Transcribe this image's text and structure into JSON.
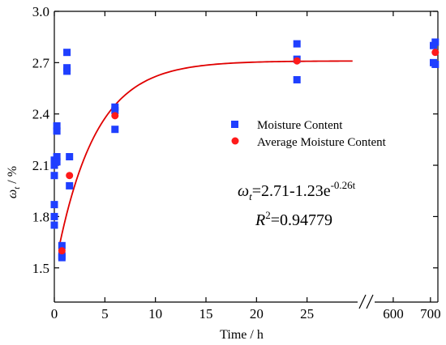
{
  "chart_data": {
    "type": "scatter",
    "xlabel": "Time / h",
    "ylabel_main": "ω",
    "ylabel_sub": "t",
    "ylabel_rest": " / %",
    "ylim": [
      1.3,
      3.0
    ],
    "y_ticks": [
      "1.5",
      "1.8",
      "2.1",
      "2.4",
      "2.7",
      "3.0"
    ],
    "x_axis": {
      "segment1_range": [
        0,
        30
      ],
      "segment1_ticks": [
        "0",
        "5",
        "10",
        "15",
        "20",
        "25"
      ],
      "segment2_range": [
        550,
        720
      ],
      "segment2_ticks": [
        "600",
        "700"
      ],
      "axis_break": true
    },
    "colors": {
      "moisture": "#1f3fff",
      "average": "#ff1a1a",
      "fit": "#e00000"
    },
    "series": [
      {
        "name": "Moisture  Content",
        "marker": "square",
        "points": [
          [
            0,
            1.75
          ],
          [
            0,
            1.8
          ],
          [
            0,
            1.87
          ],
          [
            0,
            2.04
          ],
          [
            0,
            2.1
          ],
          [
            0,
            2.13
          ],
          [
            0.25,
            2.15
          ],
          [
            0.25,
            2.3
          ],
          [
            0.25,
            2.33
          ],
          [
            0.25,
            2.12
          ],
          [
            0.75,
            1.56
          ],
          [
            0.75,
            1.57
          ],
          [
            0.75,
            1.63
          ],
          [
            1.25,
            2.65
          ],
          [
            1.25,
            2.67
          ],
          [
            1.25,
            2.76
          ],
          [
            1.5,
            2.15
          ],
          [
            1.5,
            1.98
          ],
          [
            6,
            2.31
          ],
          [
            6,
            2.42
          ],
          [
            6,
            2.44
          ],
          [
            24,
            2.6
          ],
          [
            24,
            2.72
          ],
          [
            24,
            2.81
          ],
          [
            708,
            2.7
          ],
          [
            708,
            2.8
          ],
          [
            713,
            2.82
          ],
          [
            713,
            2.69
          ]
        ]
      },
      {
        "name": "Average Moisture Content",
        "marker": "circle",
        "points": [
          [
            0.75,
            1.6
          ],
          [
            1.5,
            2.04
          ],
          [
            6,
            2.39
          ],
          [
            24,
            2.71
          ],
          [
            713,
            2.76
          ]
        ]
      }
    ],
    "fit": {
      "formula_omega": "ω",
      "formula_sub": "t",
      "formula_main": "=2.71-1.23e",
      "formula_exp": "-0.26t",
      "r2_label": "R",
      "r2_sup": "2",
      "r2_value": "=0.94779",
      "a": 2.71,
      "b": 1.23,
      "k": 0.26,
      "x_start": 0.5,
      "x_end": 29.5
    }
  }
}
